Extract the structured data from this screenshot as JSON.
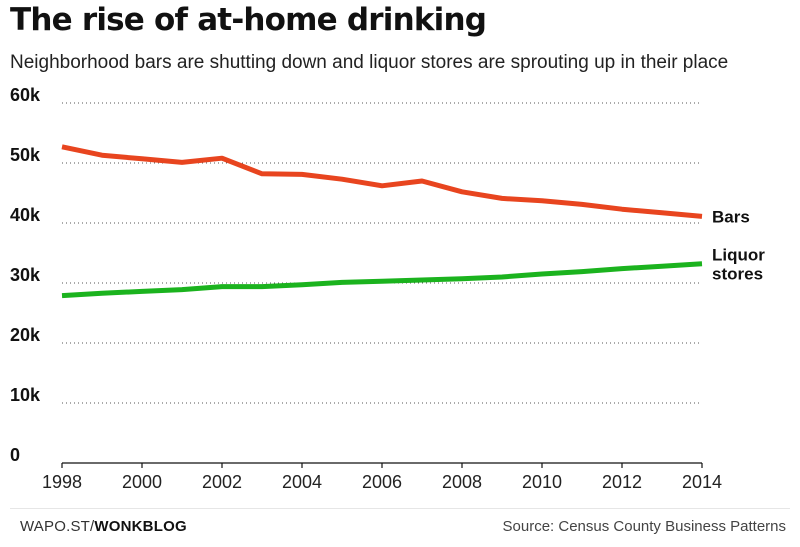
{
  "header": {
    "title": "The rise of at-home drinking",
    "subtitle": "Neighborhood bars are shutting down and liquor stores are sprouting up in their place"
  },
  "footer": {
    "brand_prefix": "WAPO.ST/",
    "brand_name": "WONKBLOG",
    "source": "Source: Census County Business Patterns"
  },
  "chart_data": {
    "type": "line",
    "title": "The rise of at-home drinking",
    "subtitle": "Neighborhood bars are shutting down and liquor stores are sprouting up in their place",
    "xlabel": "",
    "ylabel": "",
    "x": [
      1998,
      1999,
      2000,
      2001,
      2002,
      2003,
      2004,
      2005,
      2006,
      2007,
      2008,
      2009,
      2010,
      2011,
      2012,
      2013,
      2014
    ],
    "xlim": [
      1998,
      2014
    ],
    "ylim": [
      0,
      60000
    ],
    "x_ticks": [
      1998,
      2000,
      2002,
      2004,
      2006,
      2008,
      2010,
      2012,
      2014
    ],
    "x_tick_labels": [
      "1998",
      "2000",
      "2002",
      "2004",
      "2006",
      "2008",
      "2010",
      "2012",
      "2014"
    ],
    "y_ticks": [
      0,
      10000,
      20000,
      30000,
      40000,
      50000,
      60000
    ],
    "y_tick_labels": [
      "0",
      "10k",
      "20k",
      "30k",
      "40k",
      "50k",
      "60k"
    ],
    "grid": "horizontal dotted",
    "legend": "direct labels at line ends",
    "series": [
      {
        "name": "Bars",
        "label_lines": [
          "Bars"
        ],
        "color": "#e8451f",
        "values": [
          52700,
          51300,
          50700,
          50100,
          50800,
          48200,
          48100,
          47300,
          46200,
          47000,
          45200,
          44100,
          43700,
          43100,
          42300,
          41700,
          41100
        ]
      },
      {
        "name": "Liquor stores",
        "label_lines": [
          "Liquor",
          "stores"
        ],
        "color": "#1bb31e",
        "values": [
          27900,
          28300,
          28600,
          28900,
          29400,
          29400,
          29700,
          30100,
          30300,
          30500,
          30700,
          31000,
          31500,
          31900,
          32400,
          32800,
          33200
        ]
      }
    ]
  }
}
